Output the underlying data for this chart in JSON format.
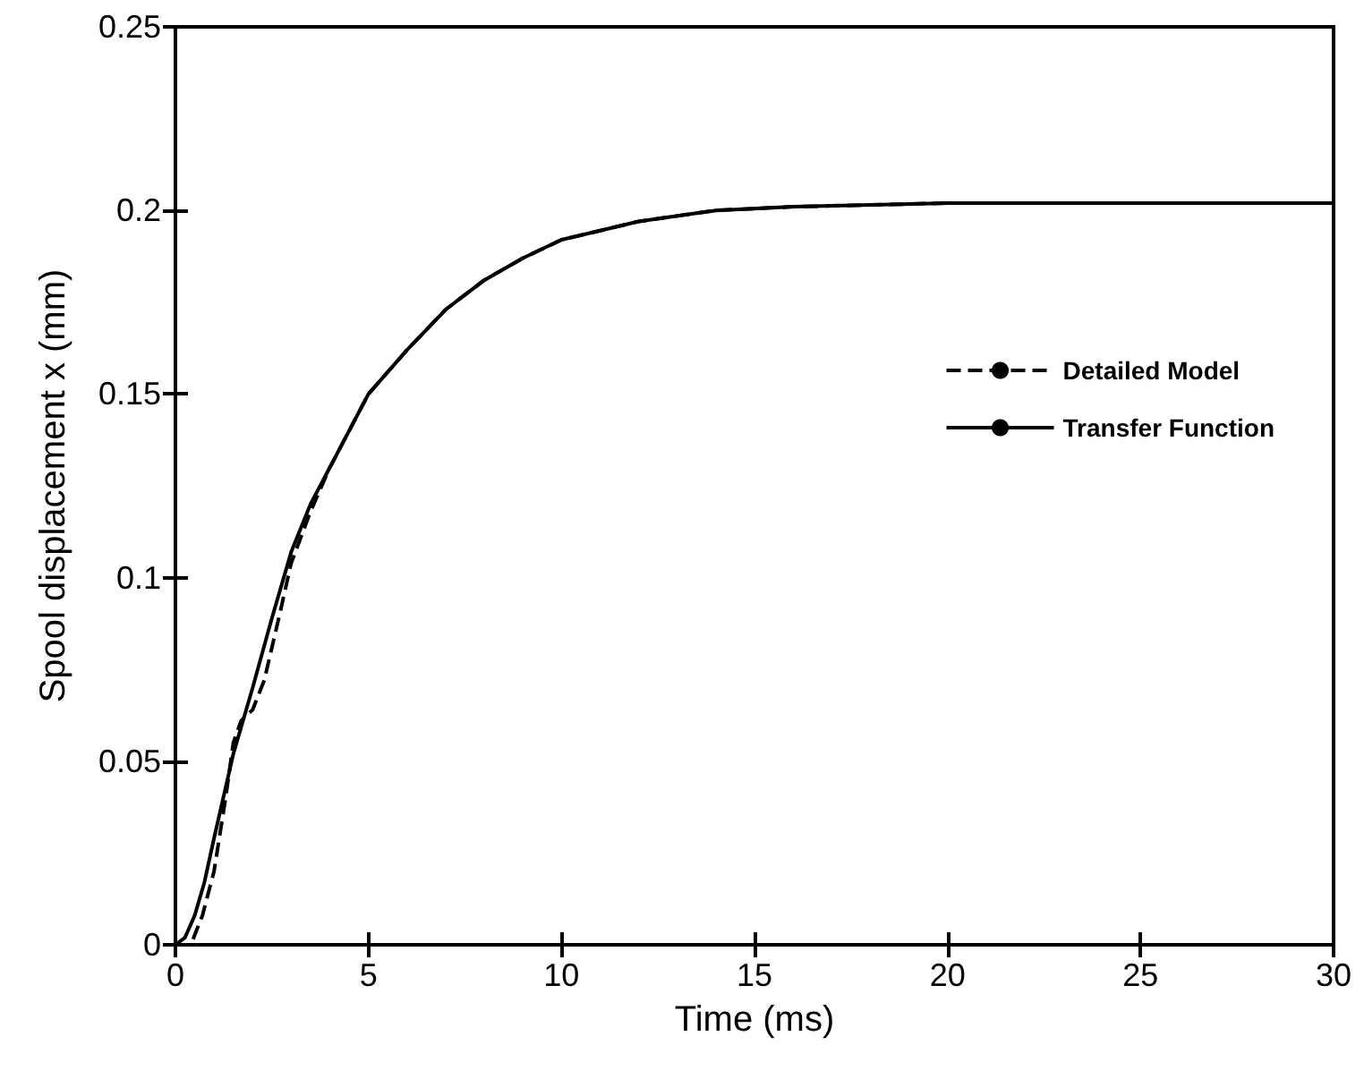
{
  "chart_data": {
    "type": "line",
    "xlabel": "Time (ms)",
    "ylabel": "Spool displacement x (mm)",
    "xlim": [
      0,
      30
    ],
    "xticks": [
      0,
      5,
      10,
      15,
      20,
      25,
      30
    ],
    "ylim": [
      0,
      0.25
    ],
    "yticks": [
      0,
      0.05,
      0.1,
      0.15,
      0.2,
      0.25
    ],
    "grid": false,
    "legend": "top right",
    "marker": "none",
    "series": [
      {
        "name": "Detailed Model",
        "color": "#000000",
        "line_style": "dashed",
        "x": [
          0,
          0.4,
          0.7,
          1,
          1.3,
          1.5,
          1.7,
          2,
          2.3,
          2.7,
          3,
          3.5,
          4,
          5,
          6,
          7,
          8,
          9,
          10,
          12,
          14,
          16,
          20,
          25,
          30
        ],
        "values": [
          0,
          0,
          0.008,
          0.02,
          0.04,
          0.055,
          0.061,
          0.064,
          0.072,
          0.09,
          0.104,
          0.118,
          0.13,
          0.15,
          0.162,
          0.173,
          0.181,
          0.187,
          0.192,
          0.197,
          0.2,
          0.201,
          0.202,
          0.202,
          0.202
        ]
      },
      {
        "name": "Transfer Function",
        "color": "#000000",
        "line_style": "solid",
        "x": [
          0,
          0.25,
          0.5,
          0.75,
          1,
          1.5,
          2,
          2.5,
          3,
          3.5,
          4,
          5,
          6,
          7,
          8,
          9,
          10,
          12,
          14,
          16,
          20,
          25,
          30
        ],
        "values": [
          0,
          0.002,
          0.008,
          0.017,
          0.029,
          0.052,
          0.07,
          0.089,
          0.107,
          0.12,
          0.13,
          0.15,
          0.162,
          0.173,
          0.181,
          0.187,
          0.192,
          0.197,
          0.2,
          0.201,
          0.202,
          0.202,
          0.202
        ]
      }
    ]
  }
}
